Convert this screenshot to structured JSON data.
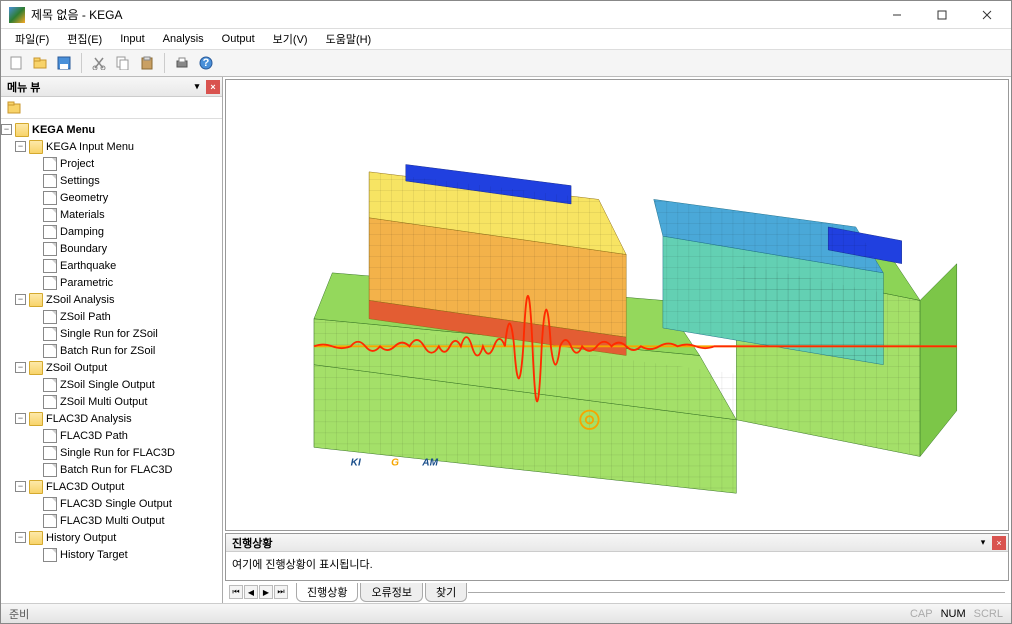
{
  "window": {
    "title": "제목 없음 - KEGA"
  },
  "menubar": {
    "items": [
      {
        "label": "파일(F)"
      },
      {
        "label": "편집(E)"
      },
      {
        "label": "Input"
      },
      {
        "label": "Analysis"
      },
      {
        "label": "Output"
      },
      {
        "label": "보기(V)"
      },
      {
        "label": "도움말(H)"
      }
    ]
  },
  "toolbar": {
    "groups": [
      [
        "new",
        "open",
        "save"
      ],
      [
        "cut",
        "copy",
        "paste"
      ],
      [
        "print",
        "help"
      ]
    ],
    "icon_colors": {
      "new": "#d9d9d9",
      "open": "#f8d36a",
      "save": "#4a90d9",
      "cut": "#888888",
      "copy": "#bbbbbb",
      "paste": "#c9a063",
      "print": "#777777",
      "help": "#4a90d9"
    }
  },
  "sidebar": {
    "title": "메뉴 뷰",
    "root": {
      "label": "KEGA Menu",
      "children": [
        {
          "label": "KEGA Input Menu",
          "children": [
            {
              "label": "Project"
            },
            {
              "label": "Settings"
            },
            {
              "label": "Geometry"
            },
            {
              "label": "Materials"
            },
            {
              "label": "Damping"
            },
            {
              "label": "Boundary"
            },
            {
              "label": "Earthquake"
            },
            {
              "label": "Parametric"
            }
          ]
        },
        {
          "label": "ZSoil Analysis",
          "children": [
            {
              "label": "ZSoil Path"
            },
            {
              "label": "Single Run for ZSoil"
            },
            {
              "label": "Batch  Run for ZSoil"
            }
          ]
        },
        {
          "label": "ZSoil Output",
          "children": [
            {
              "label": "ZSoil Single Output"
            },
            {
              "label": "ZSoil Multi Output"
            }
          ]
        },
        {
          "label": "FLAC3D Analysis",
          "children": [
            {
              "label": "FLAC3D Path"
            },
            {
              "label": "Single Run for FLAC3D"
            },
            {
              "label": "Batch  Run for FLAC3D"
            }
          ]
        },
        {
          "label": "FLAC3D Output",
          "children": [
            {
              "label": "FLAC3D Single Output"
            },
            {
              "label": "FLAC3D Multi Output"
            }
          ]
        },
        {
          "label": "History Output",
          "children": [
            {
              "label": "History Target"
            }
          ]
        }
      ]
    }
  },
  "viewport": {
    "type": "3d-mesh-render",
    "logo_text": "KIGAM",
    "logo_colors": {
      "k": "#1b4f8b",
      "i": "#1b4f8b",
      "g": "#f6a500",
      "a": "#1b4f8b",
      "m": "#1b4f8b"
    },
    "mesh_colors": {
      "base": "#a4e069",
      "base_line": "#2e6b1f",
      "warm1": "#f7e463",
      "warm2": "#f3b24a",
      "warm3": "#e35d33",
      "cool1": "#63d0b3",
      "cool2": "#4aa8d8",
      "blue": "#2040e0"
    },
    "seismogram": {
      "color": "#ff2a00",
      "baseline_color": "#f6a500"
    }
  },
  "bottom_panel": {
    "title": "진행상황",
    "body": "여기에 진행상황이 표시됩니다."
  },
  "tabs": {
    "items": [
      "진행상황",
      "오류정보",
      "찾기"
    ],
    "active_index": 0
  },
  "statusbar": {
    "left": "준비",
    "indicators": [
      {
        "label": "CAP",
        "active": false
      },
      {
        "label": "NUM",
        "active": true
      },
      {
        "label": "SCRL",
        "active": false
      }
    ]
  }
}
